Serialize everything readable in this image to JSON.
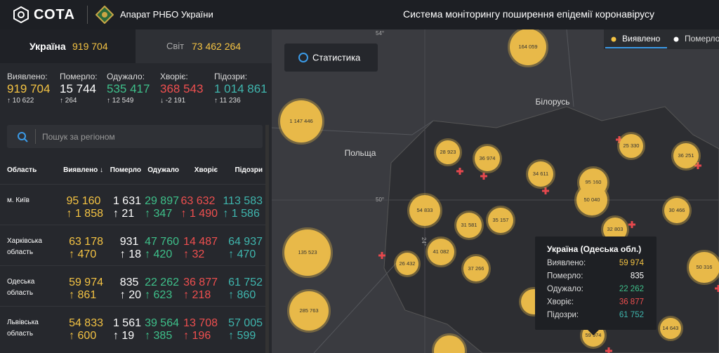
{
  "header": {
    "logo": "СОТА",
    "org": "Апарат РНБО України",
    "title": "Система моніторингу поширення епідемії коронавірусу"
  },
  "tabs": [
    {
      "label": "Україна",
      "value": "919 704"
    },
    {
      "label": "Світ",
      "value": "73 462 264"
    }
  ],
  "stats": [
    {
      "label": "Виявлено:",
      "value": "919 704",
      "delta": "10 622"
    },
    {
      "label": "Померло:",
      "value": "15 744",
      "delta": "264"
    },
    {
      "label": "Одужало:",
      "value": "535 417",
      "delta": "12 549"
    },
    {
      "label": "Хворіє:",
      "value": "368 543",
      "delta": "-2 191"
    },
    {
      "label": "Підозри:",
      "value": "1 014 861",
      "delta": "11 236"
    }
  ],
  "search": {
    "placeholder": "Пошук за регіоном"
  },
  "table": {
    "columns": [
      "Область",
      "Виявлено ↓",
      "Померло",
      "Одужало",
      "Хворіє",
      "Підозри"
    ],
    "rows": [
      {
        "region": "м. Київ",
        "cells": [
          [
            "95 160",
            "1 858"
          ],
          [
            "1 631",
            "21"
          ],
          [
            "29 897",
            "347"
          ],
          [
            "63 632",
            "1 490"
          ],
          [
            "113 583",
            "1 586"
          ]
        ]
      },
      {
        "region": "Харківська область",
        "cells": [
          [
            "63 178",
            "470"
          ],
          [
            "931",
            "18"
          ],
          [
            "47 760",
            "420"
          ],
          [
            "14 487",
            "32"
          ],
          [
            "64 937",
            "470"
          ]
        ]
      },
      {
        "region": "Одеська область",
        "cells": [
          [
            "59 974",
            "861"
          ],
          [
            "835",
            "20"
          ],
          [
            "22 262",
            "623"
          ],
          [
            "36 877",
            "218"
          ],
          [
            "61 752",
            "860"
          ]
        ]
      },
      {
        "region": "Львівська область",
        "cells": [
          [
            "54 833",
            "600"
          ],
          [
            "1 561",
            "19"
          ],
          [
            "39 564",
            "385"
          ],
          [
            "13 708",
            "196"
          ],
          [
            "57 005",
            "599"
          ]
        ]
      }
    ]
  },
  "map": {
    "button": "Статистика",
    "legend": [
      "Виявлено",
      "Померло"
    ],
    "labels": [
      "Білорусь",
      "Польща"
    ],
    "grid_labels": [
      "54°",
      "50°",
      "24°"
    ],
    "bubbles": [
      "164 059",
      "1 147 446",
      "28 923",
      "36 974",
      "34 611",
      "95 160",
      "50 040",
      "25 330",
      "36 251",
      "54 833",
      "31 581",
      "35 157",
      "41 082",
      "26 432",
      "135 523",
      "37 266",
      "32 803",
      "30 466",
      "50 316",
      "285 763",
      "14 643",
      "59 974"
    ],
    "tooltip": {
      "title": "Україна (Одеська обл.)",
      "rows": [
        {
          "label": "Виявлено:",
          "value": "59 974"
        },
        {
          "label": "Померло:",
          "value": "835"
        },
        {
          "label": "Одужало:",
          "value": "22 262"
        },
        {
          "label": "Хворіє:",
          "value": "36 877"
        },
        {
          "label": "Підозри:",
          "value": "61 752"
        }
      ]
    }
  }
}
